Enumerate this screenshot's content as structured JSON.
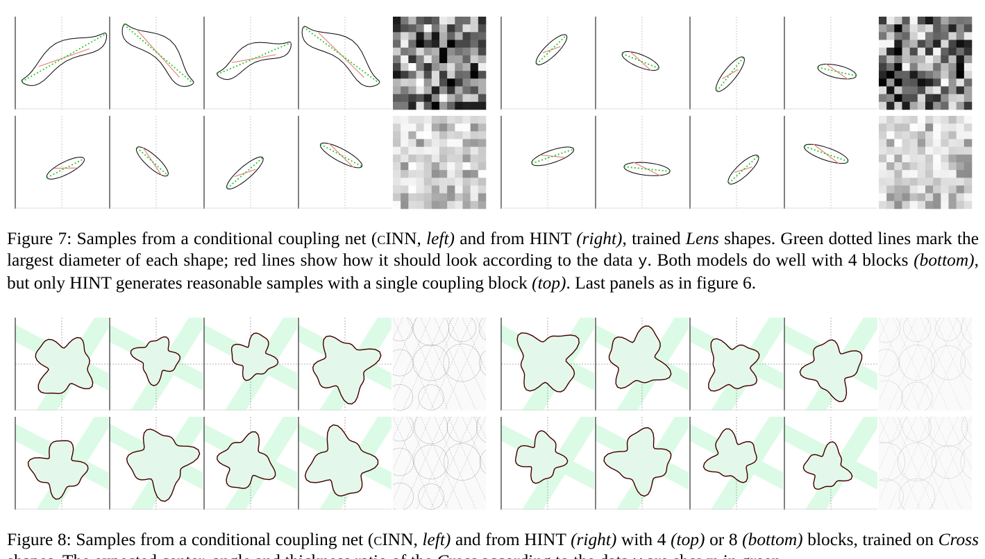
{
  "figure7": {
    "caption": {
      "label": "Figure 7:",
      "t1": "Samples from a conditional coupling net ",
      "t2": "(",
      "cinn": "cINN",
      "t3": ", ",
      "left": "left)",
      "t4": " and from HINT ",
      "right": "(right)",
      "t5": ", trained ",
      "lens": "Lens",
      "t6": " shapes. Green dotted lines mark the largest diameter of each shape; red lines show how it should look according to the data ",
      "y": "y",
      "t7": ". Both models do well with 4 blocks ",
      "bottom": "(bottom)",
      "t8": ", but only HINT generates reasonable samples with a single coupling block ",
      "top": "(top)",
      "t9": ". Last panels as in figure 6."
    },
    "colors": {
      "shape": "#000000",
      "diameter": "#22cc22",
      "expected": "#f08080",
      "guide": "#bbbbbb"
    }
  },
  "figure8": {
    "caption": {
      "label": "Figure 8:",
      "t1": "Samples from a conditional coupling net ",
      "t2": "(",
      "cinn": "cINN",
      "t3": ", ",
      "left": "left)",
      "t4": " and from HINT ",
      "right": "(right)",
      "t5": " with 4 ",
      "top": "(top)",
      "t6": " or 8 ",
      "bottom": "(bottom)",
      "t7": " blocks, trained on ",
      "cross": "Cross",
      "t8": " shapes. The expected center, angle and thickness ratio of the ",
      "cross2": "Cross",
      "t9": " according to the data ",
      "y": "y",
      "t10": " are shown in green."
    },
    "colors": {
      "shape": "#000000",
      "fill": "#e3f8ea",
      "band": "#dcfbe6",
      "expected": "#ee4444",
      "guide": "#999999"
    }
  }
}
